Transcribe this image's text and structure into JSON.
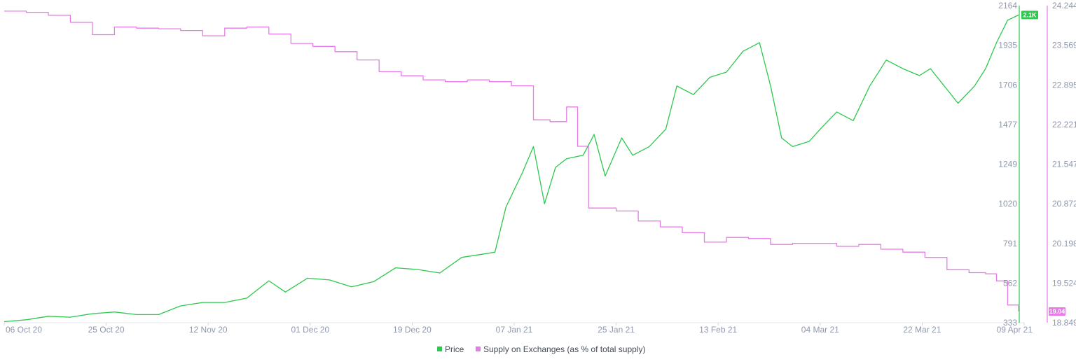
{
  "chart_data": {
    "type": "line",
    "title": "",
    "x_tick_labels": [
      "06 Oct 20",
      "25 Oct 20",
      "12 Nov 20",
      "01 Dec 20",
      "19 Dec 20",
      "07 Jan 21",
      "25 Jan 21",
      "13 Feb 21",
      "04 Mar 21",
      "22 Mar 21",
      "09 Apr 21"
    ],
    "x_range": [
      "2020-10-06",
      "2021-04-09"
    ],
    "legend_position": "bottom-center",
    "grid": false,
    "y_axes": [
      {
        "side": "right-inner",
        "range": [
          333,
          2164
        ],
        "tick_labels": [
          "2164",
          "1935",
          "1706",
          "1477",
          "1249",
          "1020",
          "791",
          "562",
          "333"
        ],
        "color": "#2dc84d"
      },
      {
        "side": "right-outer",
        "range": [
          18.849,
          24.244
        ],
        "tick_labels": [
          "24.244",
          "23.569",
          "22.895",
          "22.221",
          "21.547",
          "20.872",
          "20.198",
          "19.524",
          "18.849"
        ],
        "color": "#e879e8"
      }
    ],
    "series": [
      {
        "name": "Price",
        "axis": 0,
        "color": "#2dc84d",
        "last_value_label": "2.1K",
        "x": [
          "2020-10-06",
          "2020-10-10",
          "2020-10-14",
          "2020-10-18",
          "2020-10-22",
          "2020-10-26",
          "2020-10-30",
          "2020-11-03",
          "2020-11-07",
          "2020-11-11",
          "2020-11-15",
          "2020-11-19",
          "2020-11-23",
          "2020-11-26",
          "2020-11-30",
          "2020-12-04",
          "2020-12-08",
          "2020-12-12",
          "2020-12-16",
          "2020-12-20",
          "2020-12-24",
          "2020-12-28",
          "2021-01-01",
          "2021-01-03",
          "2021-01-05",
          "2021-01-08",
          "2021-01-10",
          "2021-01-12",
          "2021-01-14",
          "2021-01-16",
          "2021-01-19",
          "2021-01-21",
          "2021-01-23",
          "2021-01-26",
          "2021-01-28",
          "2021-01-31",
          "2021-02-03",
          "2021-02-05",
          "2021-02-08",
          "2021-02-11",
          "2021-02-14",
          "2021-02-17",
          "2021-02-20",
          "2021-02-22",
          "2021-02-24",
          "2021-02-26",
          "2021-03-01",
          "2021-03-03",
          "2021-03-06",
          "2021-03-09",
          "2021-03-12",
          "2021-03-15",
          "2021-03-18",
          "2021-03-21",
          "2021-03-23",
          "2021-03-25",
          "2021-03-28",
          "2021-03-31",
          "2021-04-02",
          "2021-04-04",
          "2021-04-06",
          "2021-04-08"
        ],
        "values": [
          339,
          350,
          370,
          365,
          385,
          395,
          380,
          380,
          430,
          450,
          450,
          475,
          575,
          510,
          590,
          580,
          540,
          570,
          650,
          640,
          620,
          710,
          730,
          740,
          1000,
          1200,
          1350,
          1020,
          1230,
          1280,
          1300,
          1420,
          1180,
          1400,
          1300,
          1350,
          1450,
          1700,
          1650,
          1750,
          1780,
          1900,
          1950,
          1700,
          1400,
          1350,
          1380,
          1450,
          1550,
          1500,
          1700,
          1850,
          1800,
          1760,
          1800,
          1720,
          1600,
          1700,
          1800,
          1950,
          2080,
          2110
        ]
      },
      {
        "name": "Supply on Exchanges (as % of total supply)",
        "axis": 1,
        "color": "#e879e8",
        "last_value_label": "19.04",
        "x": [
          "2020-10-06",
          "2020-10-10",
          "2020-10-14",
          "2020-10-18",
          "2020-10-22",
          "2020-10-26",
          "2020-10-30",
          "2020-11-03",
          "2020-11-07",
          "2020-11-11",
          "2020-11-15",
          "2020-11-19",
          "2020-11-23",
          "2020-11-27",
          "2020-12-01",
          "2020-12-05",
          "2020-12-09",
          "2020-12-13",
          "2020-12-17",
          "2020-12-21",
          "2020-12-25",
          "2020-12-29",
          "2021-01-02",
          "2021-01-06",
          "2021-01-10",
          "2021-01-13",
          "2021-01-16",
          "2021-01-18",
          "2021-01-20",
          "2021-01-22",
          "2021-01-25",
          "2021-01-29",
          "2021-02-02",
          "2021-02-06",
          "2021-02-10",
          "2021-02-14",
          "2021-02-18",
          "2021-02-22",
          "2021-02-26",
          "2021-03-02",
          "2021-03-06",
          "2021-03-10",
          "2021-03-14",
          "2021-03-18",
          "2021-03-22",
          "2021-03-26",
          "2021-03-30",
          "2021-04-02",
          "2021-04-04",
          "2021-04-06",
          "2021-04-08"
        ],
        "values": [
          24.15,
          24.13,
          24.08,
          23.96,
          23.75,
          23.88,
          23.86,
          23.85,
          23.82,
          23.73,
          23.86,
          23.88,
          23.76,
          23.6,
          23.55,
          23.46,
          23.32,
          23.12,
          23.05,
          22.98,
          22.95,
          22.98,
          22.95,
          22.88,
          22.3,
          22.27,
          22.52,
          21.85,
          20.8,
          20.8,
          20.75,
          20.58,
          20.48,
          20.38,
          20.22,
          20.3,
          20.28,
          20.18,
          20.2,
          20.2,
          20.15,
          20.18,
          20.1,
          20.05,
          19.96,
          19.75,
          19.7,
          19.68,
          19.56,
          19.15,
          19.04
        ]
      }
    ]
  }
}
